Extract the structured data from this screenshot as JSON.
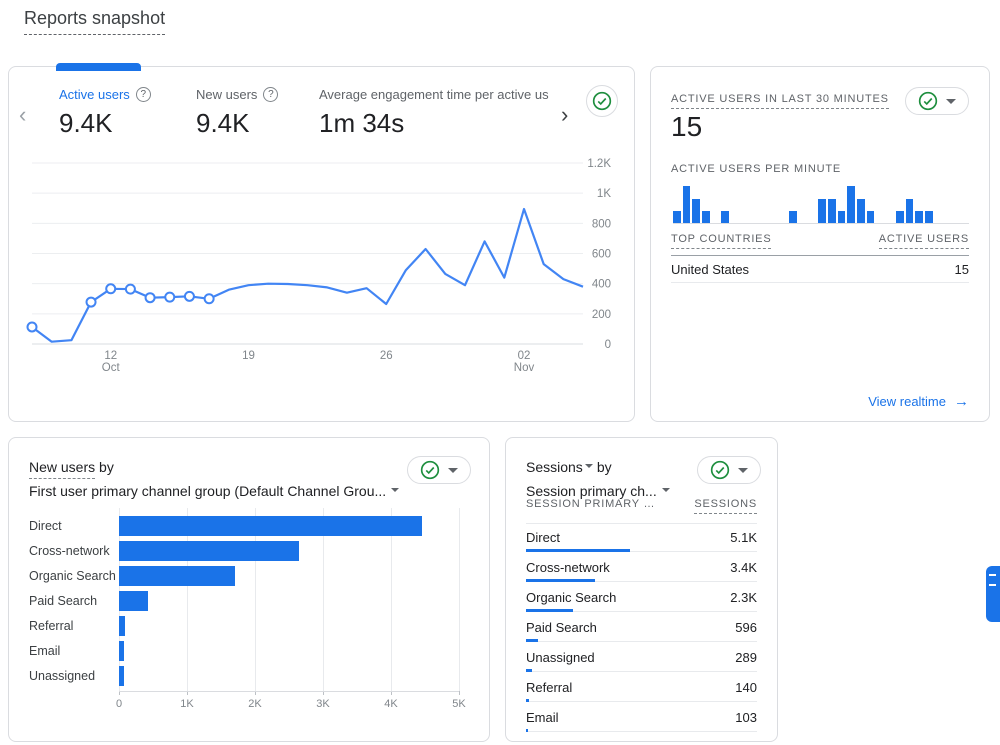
{
  "header": {
    "title": "Reports snapshot"
  },
  "icons": {
    "help": "?",
    "chev_left": "‹",
    "chev_right": "›",
    "arrow_right": "→"
  },
  "colors": {
    "accent_blue": "#1a73e8",
    "line_blue": "#4285f4",
    "check_green": "#1e8e3e",
    "text_dark": "#202124",
    "text_gray": "#5f6368",
    "border": "#dadce0"
  },
  "overview": {
    "metrics": [
      {
        "label": "Active users",
        "value": "9.4K"
      },
      {
        "label": "New users",
        "value": "9.4K"
      },
      {
        "label": "Average engagement time per active us",
        "value": "1m 34s"
      }
    ]
  },
  "realtime": {
    "title": "ACTIVE USERS IN LAST 30 MINUTES",
    "value": "15",
    "per_minute_label": "ACTIVE USERS PER MINUTE",
    "countries_header": "TOP COUNTRIES",
    "users_header": "ACTIVE USERS",
    "country_rows": [
      {
        "country": "United States",
        "users": "15"
      }
    ],
    "link_label": "View realtime"
  },
  "newusers_card": {
    "title_metric": "New users",
    "title_by": "by",
    "title_dimension": "First user primary channel group (Default Channel Grou..."
  },
  "sessions_card": {
    "title_metric": "Sessions",
    "title_by": "by",
    "title_dimension": "Session primary ch...",
    "col_dimension": "SESSION PRIMARY …",
    "col_metric": "SESSIONS"
  },
  "chart_data": [
    {
      "name": "active-users-trend",
      "type": "line",
      "title": "Active users over time",
      "x_start_date": "Oct 8",
      "x_end_date": "Nov 5",
      "values": [
        113,
        15,
        25,
        278,
        366,
        364,
        307,
        311,
        316,
        300,
        360,
        390,
        400,
        398,
        390,
        375,
        340,
        370,
        265,
        490,
        630,
        465,
        390,
        680,
        440,
        895,
        530,
        430,
        380
      ],
      "marker_indices": [
        0,
        3,
        4,
        5,
        6,
        7,
        8,
        9
      ],
      "ylim": [
        0,
        1200
      ],
      "yticks": [
        "0",
        "200",
        "400",
        "600",
        "800",
        "1K",
        "1.2K"
      ],
      "xticks": [
        {
          "index": 4,
          "label": "12",
          "sub": "Oct"
        },
        {
          "index": 11,
          "label": "19",
          "sub": ""
        },
        {
          "index": 18,
          "label": "26",
          "sub": ""
        },
        {
          "index": 25,
          "label": "02",
          "sub": "Nov"
        }
      ],
      "grid": true,
      "legend": "none"
    },
    {
      "name": "active-users-per-minute",
      "type": "bar",
      "title": "Active users per minute",
      "values": [
        1,
        3,
        2,
        1,
        0,
        1,
        0,
        0,
        0,
        0,
        0,
        0,
        1,
        0,
        0,
        2,
        2,
        1,
        3,
        2,
        1,
        0,
        0,
        1,
        2,
        1,
        1,
        0,
        0,
        0
      ],
      "ylim": [
        0,
        3
      ],
      "grid": false
    },
    {
      "name": "new-users-by-channel",
      "type": "bar",
      "orientation": "horizontal",
      "title": "New users by first user primary channel group",
      "categories": [
        "Direct",
        "Cross-network",
        "Organic Search",
        "Paid Search",
        "Referral",
        "Email",
        "Unassigned"
      ],
      "values": [
        4450,
        2650,
        1700,
        430,
        90,
        70,
        75
      ],
      "xticks": [
        "0",
        "1K",
        "2K",
        "3K",
        "4K",
        "5K"
      ],
      "xlim": [
        0,
        5000
      ],
      "grid": true
    },
    {
      "name": "sessions-by-channel",
      "type": "table",
      "title": "Sessions by session primary channel group",
      "columns": [
        "SESSION PRIMARY …",
        "SESSIONS"
      ],
      "rows": [
        {
          "label": "Direct",
          "display": "5.1K",
          "value": 5100
        },
        {
          "label": "Cross-network",
          "display": "3.4K",
          "value": 3400
        },
        {
          "label": "Organic Search",
          "display": "2.3K",
          "value": 2300
        },
        {
          "label": "Paid Search",
          "display": "596",
          "value": 596
        },
        {
          "label": "Unassigned",
          "display": "289",
          "value": 289
        },
        {
          "label": "Referral",
          "display": "140",
          "value": 140
        },
        {
          "label": "Email",
          "display": "103",
          "value": 103
        }
      ],
      "bar_max": 5100
    }
  ]
}
